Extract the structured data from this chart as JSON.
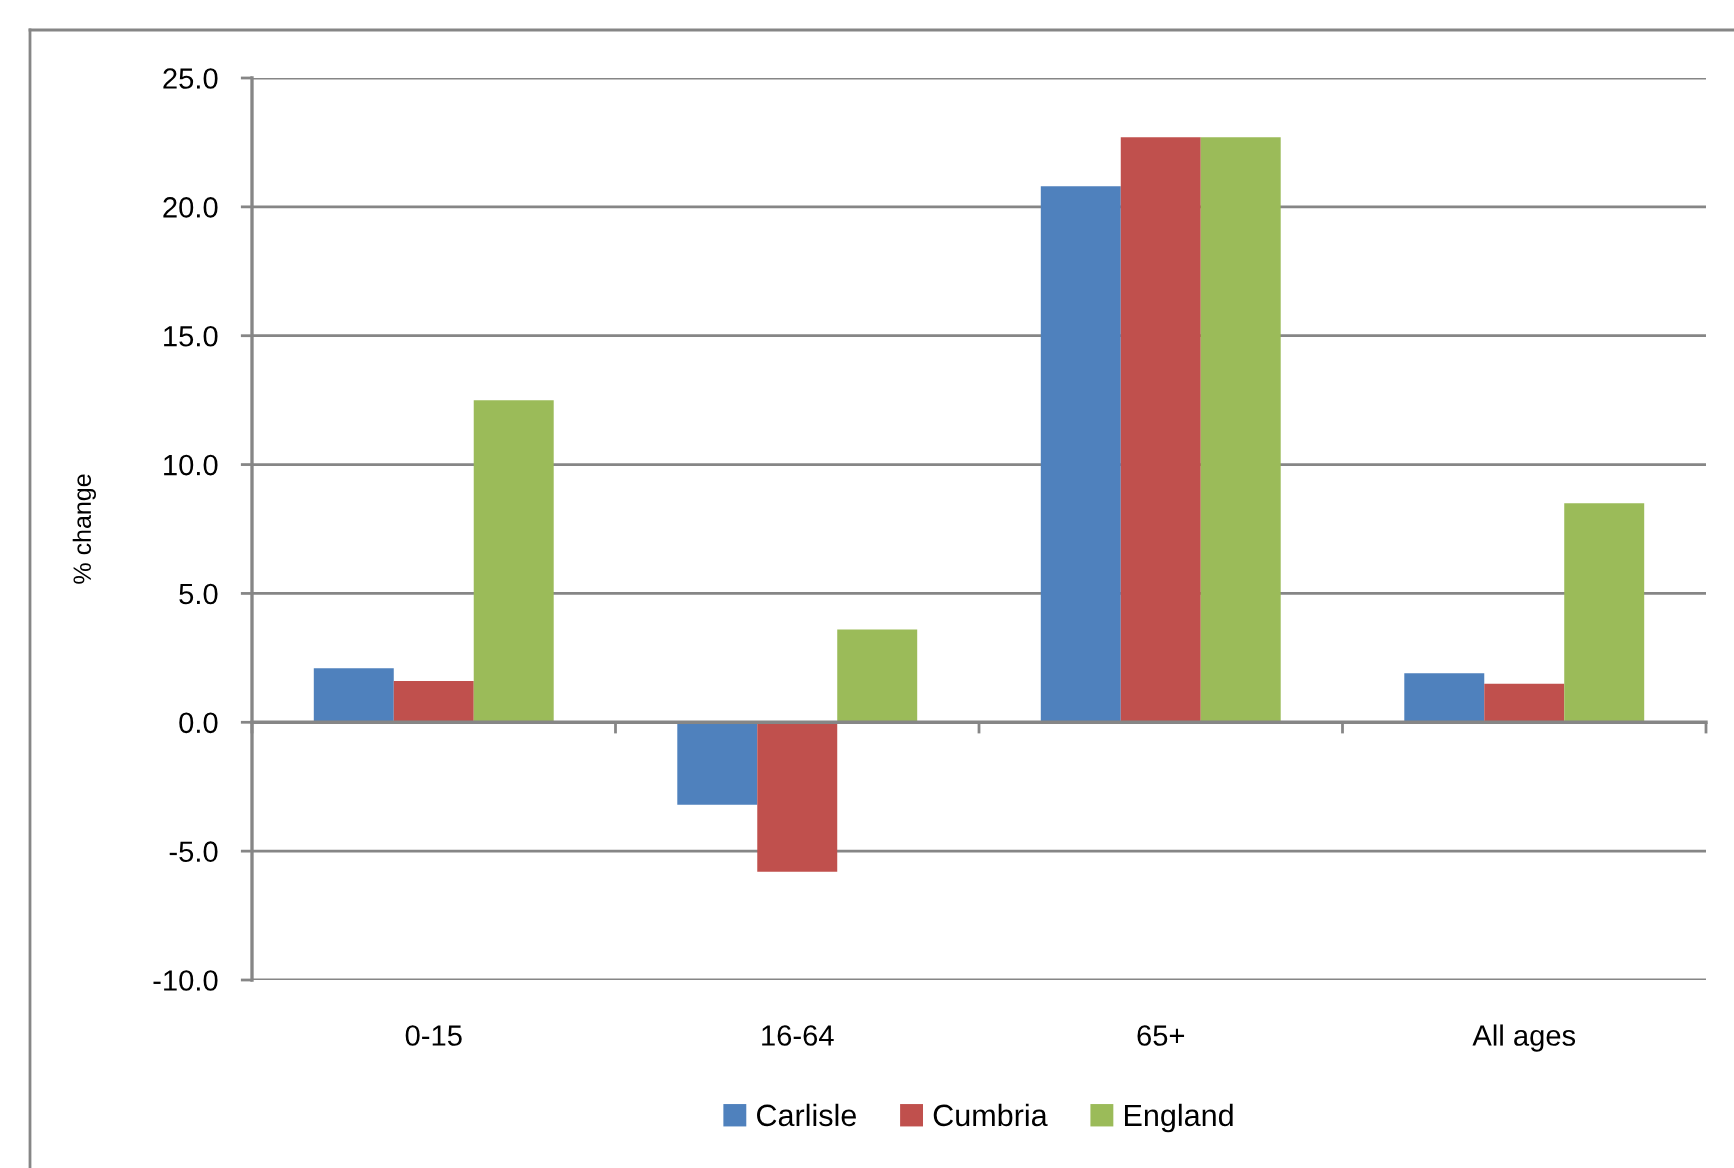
{
  "chart_data": {
    "type": "bar",
    "ylabel": "% change",
    "categories": [
      "0-15",
      "16-64",
      "65+",
      "All ages"
    ],
    "series": [
      {
        "name": "Carlisle",
        "color": "#4f81bd",
        "values": [
          2.1,
          -3.2,
          20.8,
          1.9
        ]
      },
      {
        "name": "Cumbria",
        "color": "#c0504d",
        "values": [
          1.6,
          -5.8,
          22.7,
          1.5
        ]
      },
      {
        "name": "England",
        "color": "#9bbb59",
        "values": [
          12.5,
          3.6,
          22.7,
          8.5
        ]
      }
    ],
    "ylim": [
      -10,
      25
    ],
    "yticks": [
      {
        "value": -10,
        "label": "-10.0"
      },
      {
        "value": -5,
        "label": "-5.0"
      },
      {
        "value": 0,
        "label": "0.0"
      },
      {
        "value": 5,
        "label": "5.0"
      },
      {
        "value": 10,
        "label": "10.0"
      },
      {
        "value": 15,
        "label": "15.0"
      },
      {
        "value": 20,
        "label": "20.0"
      },
      {
        "value": 25,
        "label": "25.0"
      }
    ],
    "grid": "y",
    "legend": "bottom"
  }
}
